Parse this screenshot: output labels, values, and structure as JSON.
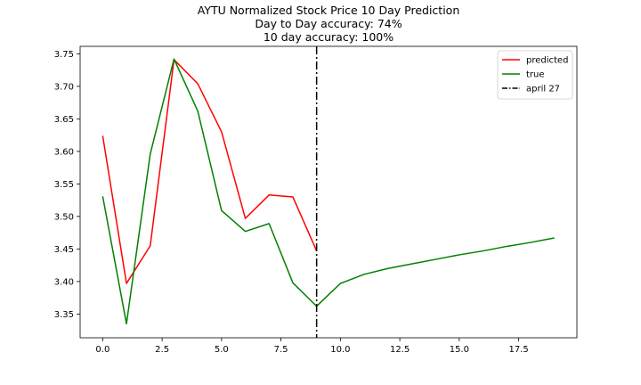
{
  "chart_data": {
    "type": "line",
    "title_lines": [
      "AYTU Normalized Stock Price 10 Day Prediction",
      "Day to Day accuracy: 74%",
      "10 day accuracy: 100%"
    ],
    "xlabel": "",
    "ylabel": "",
    "xlim": [
      -0.95,
      19.95
    ],
    "ylim": [
      3.3135,
      3.7615
    ],
    "x_ticks": [
      0.0,
      2.5,
      5.0,
      7.5,
      10.0,
      12.5,
      15.0,
      17.5
    ],
    "x_tick_labels": [
      "0.0",
      "2.5",
      "5.0",
      "7.5",
      "10.0",
      "12.5",
      "15.0",
      "17.5"
    ],
    "y_ticks": [
      3.35,
      3.4,
      3.45,
      3.5,
      3.55,
      3.6,
      3.65,
      3.7,
      3.75
    ],
    "y_tick_labels": [
      "3.35",
      "3.40",
      "3.45",
      "3.50",
      "3.55",
      "3.60",
      "3.65",
      "3.70",
      "3.75"
    ],
    "grid": false,
    "legend_position": "top-right",
    "series": [
      {
        "name": "predicted",
        "color": "#ff0000",
        "style": "solid",
        "x": [
          0,
          1,
          2,
          3,
          4,
          5,
          6,
          7,
          8,
          9
        ],
        "y": [
          3.624,
          3.397,
          3.455,
          3.741,
          3.704,
          3.63,
          3.497,
          3.533,
          3.53,
          3.447
        ]
      },
      {
        "name": "true",
        "color": "#008000",
        "style": "solid",
        "x": [
          0,
          1,
          2,
          3,
          4,
          5,
          6,
          7,
          8,
          9,
          10,
          11,
          12,
          13,
          14,
          15,
          16,
          17,
          18,
          19
        ],
        "y": [
          3.531,
          3.335,
          3.596,
          3.742,
          3.662,
          3.509,
          3.477,
          3.489,
          3.398,
          3.362,
          3.397,
          3.411,
          3.42,
          3.427,
          3.434,
          3.441,
          3.447,
          3.454,
          3.46,
          3.467
        ]
      }
    ],
    "vlines": [
      {
        "name": "april 27",
        "x": 9,
        "color": "#000000",
        "style": "dashdot"
      }
    ]
  }
}
